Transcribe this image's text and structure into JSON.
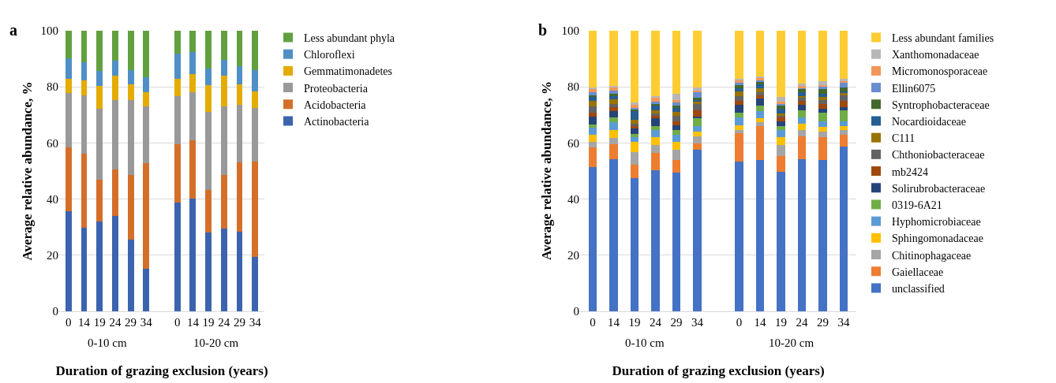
{
  "chart_data": [
    {
      "type": "bar",
      "stacked": true,
      "title": "a",
      "xlabel": "Duration of grazing exclusion (years)",
      "ylabel": "Average relative abundance, %",
      "categories": [
        "0",
        "14",
        "19",
        "24",
        "29",
        "34",
        "0",
        "14",
        "19",
        "24",
        "29",
        "34"
      ],
      "annotations": [
        "0-10 cm",
        "10-20 cm"
      ],
      "ylim": [
        0,
        100
      ],
      "yticks": [
        0,
        20,
        40,
        60,
        80,
        100
      ],
      "grid": "y",
      "legend": "right",
      "series": [
        {
          "name": "Actinobacteria",
          "color": "#3c64ae",
          "values": [
            35.6,
            29.9,
            32.1,
            33.9,
            25.7,
            15.3,
            38.8,
            40.3,
            28.0,
            29.6,
            28.5,
            19.5
          ]
        },
        {
          "name": "Acidobacteria",
          "color": "#d46f2a",
          "values": [
            22.7,
            26.2,
            14.9,
            16.6,
            22.9,
            37.5,
            20.8,
            20.6,
            15.2,
            18.9,
            24.5,
            34.0
          ]
        },
        {
          "name": "Proteobacteria",
          "color": "#999999",
          "values": [
            19.6,
            20.8,
            25.3,
            24.8,
            26.7,
            20.2,
            17.2,
            17.1,
            28.0,
            24.4,
            20.5,
            19.0
          ]
        },
        {
          "name": "Gemmatimonadetes",
          "color": "#e3ac00",
          "values": [
            5.1,
            5.5,
            7.9,
            8.8,
            5.6,
            5.0,
            6.2,
            6.5,
            9.5,
            11.1,
            7.5,
            6.0
          ]
        },
        {
          "name": "Chloroflexi",
          "color": "#4f8fc6",
          "values": [
            7.2,
            6.3,
            5.4,
            5.2,
            5.1,
            5.4,
            8.9,
            7.8,
            5.8,
            5.7,
            6.5,
            7.5
          ]
        },
        {
          "name": "Less abundant phyla",
          "color": "#62a03f",
          "values": [
            9.8,
            11.3,
            14.4,
            10.7,
            14.0,
            16.6,
            8.1,
            7.7,
            13.5,
            10.3,
            12.5,
            14.0
          ]
        }
      ]
    },
    {
      "type": "bar",
      "stacked": true,
      "title": "b",
      "xlabel": "Duration of grazing exclusion (years)",
      "ylabel": "Average relative abundance, %",
      "categories": [
        "0",
        "14",
        "19",
        "24",
        "29",
        "34",
        "0",
        "14",
        "19",
        "24",
        "29",
        "34"
      ],
      "annotations": [
        "0-10 cm",
        "10-20 cm"
      ],
      "ylim": [
        0,
        100
      ],
      "yticks": [
        0,
        20,
        40,
        60,
        80,
        100
      ],
      "grid": "y",
      "legend": "right",
      "series": [
        {
          "name": "unclassified",
          "color": "#4472c4",
          "values": [
            51.4,
            54.2,
            47.5,
            50.2,
            49.5,
            57.5,
            53.3,
            54.0,
            49.7,
            54.2,
            54.0,
            58.8
          ]
        },
        {
          "name": "Gaiellaceae",
          "color": "#ed7d31",
          "values": [
            7.0,
            5.4,
            4.8,
            6.2,
            4.4,
            2.3,
            10.1,
            11.9,
            5.7,
            8.2,
            8.0,
            4.1
          ]
        },
        {
          "name": "Chitinophagaceae",
          "color": "#a5a5a5",
          "values": [
            1.9,
            2.1,
            4.5,
            2.8,
            3.6,
            2.6,
            1.3,
            1.5,
            4.0,
            2.1,
            2.1,
            1.8
          ]
        },
        {
          "name": "Sphingomonadaceae",
          "color": "#ffc000",
          "values": [
            2.6,
            2.8,
            3.7,
            3.0,
            2.8,
            1.7,
            1.7,
            1.4,
            2.8,
            2.4,
            1.6,
            1.4
          ]
        },
        {
          "name": "Hyphomicrobiaceae",
          "color": "#5b9bd5",
          "values": [
            2.6,
            2.9,
            1.7,
            2.5,
            2.6,
            2.0,
            2.8,
            2.5,
            2.3,
            2.1,
            1.9,
            1.7
          ]
        },
        {
          "name": "0319-6A21",
          "color": "#70ad47",
          "values": [
            1.1,
            1.8,
            1.1,
            1.2,
            1.8,
            2.7,
            1.7,
            2.0,
            1.6,
            2.6,
            3.2,
            3.8
          ]
        },
        {
          "name": "Solirubrobacteraceae",
          "color": "#264478",
          "values": [
            2.8,
            2.1,
            1.9,
            2.9,
            1.7,
            0.7,
            2.6,
            2.5,
            1.7,
            1.9,
            1.5,
            1.1
          ]
        },
        {
          "name": "mb2424",
          "color": "#9e480e",
          "values": [
            1.4,
            1.4,
            0.9,
            0.9,
            1.4,
            2.1,
            1.5,
            1.1,
            1.2,
            1.4,
            1.6,
            2.2
          ]
        },
        {
          "name": "Chthoniobacteraceae",
          "color": "#636363",
          "values": [
            2.2,
            1.2,
            0.8,
            0.9,
            1.9,
            2.3,
            1.7,
            1.1,
            0.7,
            1.1,
            1.4,
            2.1
          ]
        },
        {
          "name": "C111",
          "color": "#997300",
          "values": [
            1.9,
            1.6,
            1.4,
            1.0,
            1.4,
            1.0,
            1.6,
            1.5,
            0.9,
            0.7,
            1.2,
            1.0
          ]
        },
        {
          "name": "Nocardioidaceae",
          "color": "#255e91",
          "values": [
            1.6,
            1.3,
            3.1,
            1.7,
            1.4,
            0.5,
            1.2,
            1.3,
            1.7,
            1.3,
            0.9,
            0.4
          ]
        },
        {
          "name": "Syntrophobacteraceae",
          "color": "#43682b",
          "values": [
            0.5,
            0.8,
            0.6,
            0.6,
            0.8,
            0.7,
            1.2,
            0.9,
            1.2,
            1.1,
            1.7,
            1.4
          ]
        },
        {
          "name": "Ellin6075",
          "color": "#698ed0",
          "values": [
            1.0,
            1.0,
            0.5,
            0.7,
            1.1,
            1.9,
            0.7,
            0.7,
            0.4,
            0.6,
            0.9,
            1.6
          ]
        },
        {
          "name": "Micromonosporaceae",
          "color": "#f1975a",
          "values": [
            1.3,
            1.2,
            1.1,
            1.4,
            0.9,
            0.6,
            1.1,
            0.7,
            0.8,
            0.5,
            0.7,
            0.7
          ]
        },
        {
          "name": "Xanthomonadaceae",
          "color": "#b7b7b7",
          "values": [
            0.5,
            0.4,
            0.8,
            0.7,
            2.1,
            1.1,
            0.3,
            0.7,
            1.6,
            0.9,
            1.2,
            0.7
          ]
        },
        {
          "name": "Less abundant families",
          "color": "#ffcd33",
          "values": [
            20.2,
            19.8,
            25.6,
            23.3,
            22.6,
            20.3,
            17.2,
            16.2,
            23.7,
            18.9,
            18.1,
            17.2
          ]
        }
      ]
    }
  ]
}
